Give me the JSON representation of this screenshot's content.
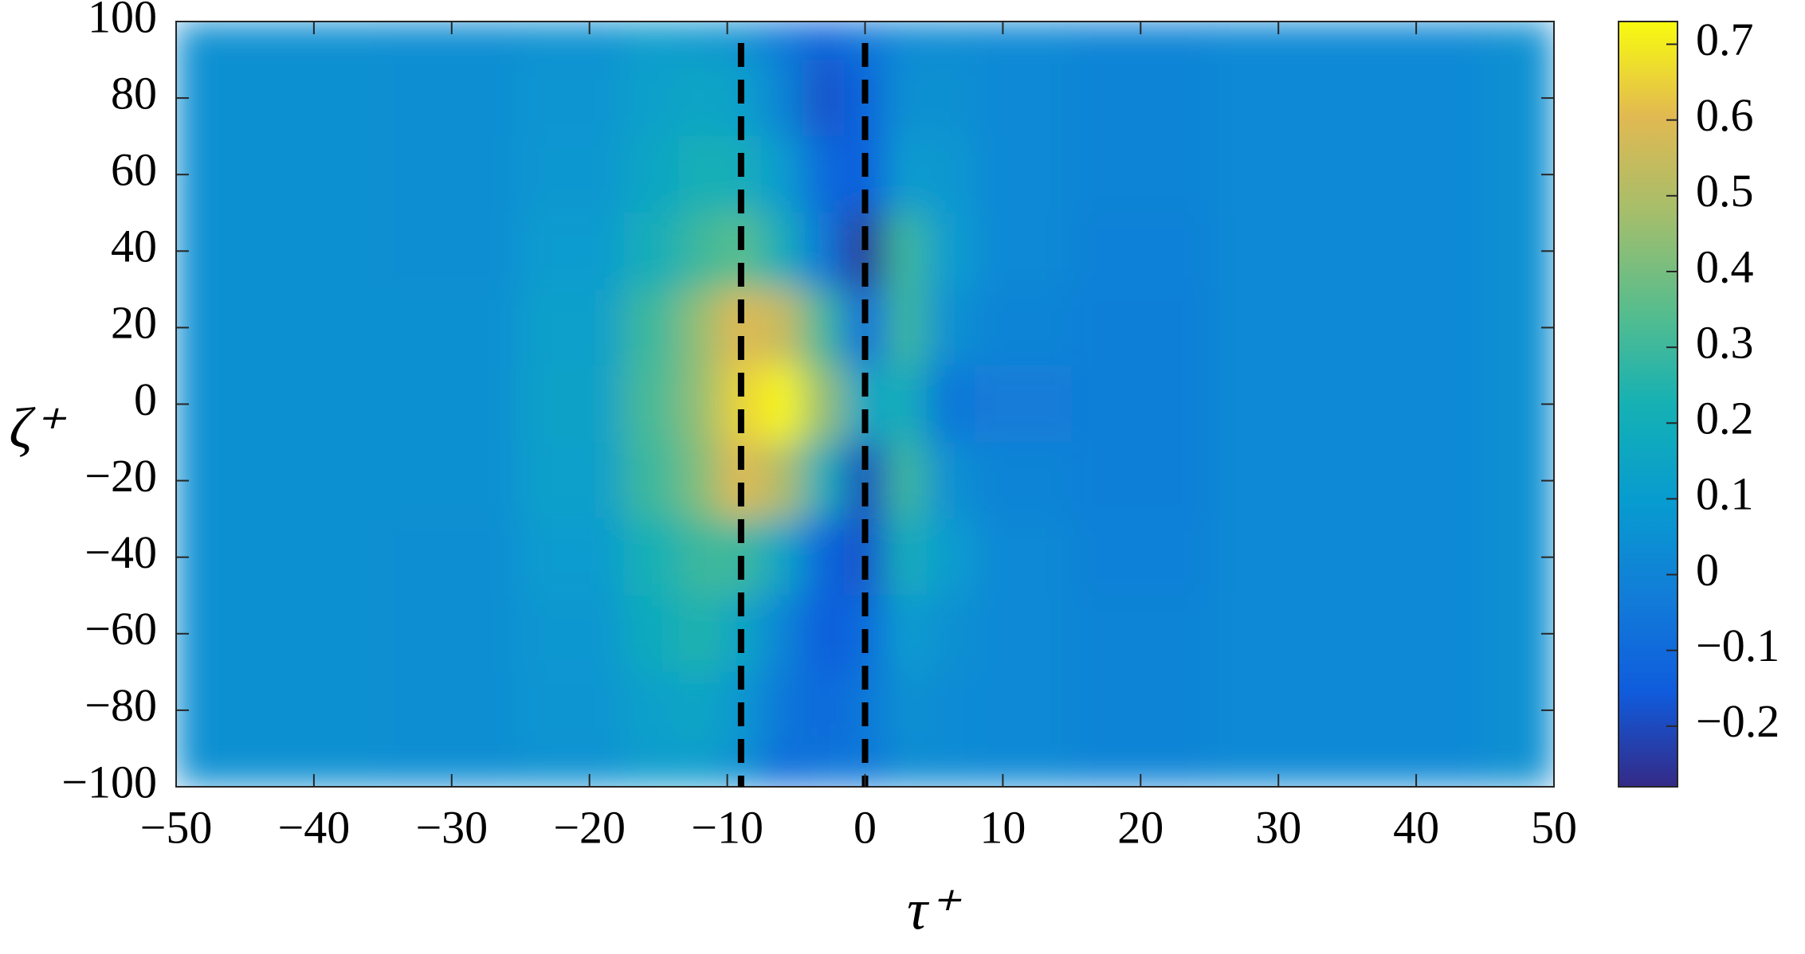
{
  "chart_data": {
    "type": "heatmap",
    "x": [
      -50,
      -40,
      -30,
      -20,
      -15,
      -12,
      -9,
      -6,
      -3,
      0,
      3,
      6,
      10,
      20,
      30,
      40,
      50
    ],
    "y": [
      100,
      80,
      60,
      40,
      20,
      0,
      -20,
      -40,
      -60,
      -80,
      -100
    ],
    "values": [
      [
        0.05,
        0.05,
        0.04,
        0.06,
        0.1,
        0.08,
        0.05,
        -0.05,
        -0.12,
        -0.05,
        0.02,
        0.03,
        0.02,
        0.0,
        0.02,
        0.02,
        0.05
      ],
      [
        0.05,
        0.05,
        0.04,
        0.07,
        0.12,
        0.15,
        0.12,
        0.0,
        -0.18,
        -0.12,
        0.05,
        0.05,
        0.02,
        0.0,
        0.02,
        0.02,
        0.05
      ],
      [
        0.05,
        0.05,
        0.04,
        0.08,
        0.15,
        0.22,
        0.2,
        0.1,
        -0.1,
        -0.15,
        0.1,
        0.08,
        0.02,
        0.0,
        0.02,
        0.02,
        0.05
      ],
      [
        0.05,
        0.05,
        0.04,
        0.1,
        0.2,
        0.3,
        0.35,
        0.2,
        -0.05,
        -0.25,
        0.3,
        0.1,
        0.02,
        -0.01,
        0.02,
        0.02,
        0.05
      ],
      [
        0.05,
        0.05,
        0.05,
        0.12,
        0.3,
        0.45,
        0.6,
        0.55,
        0.3,
        -0.1,
        0.3,
        0.05,
        0.0,
        -0.02,
        0.02,
        0.02,
        0.05
      ],
      [
        0.05,
        0.05,
        0.05,
        0.13,
        0.32,
        0.45,
        0.65,
        0.72,
        0.45,
        0.15,
        0.2,
        -0.05,
        -0.03,
        -0.02,
        0.02,
        0.02,
        0.05
      ],
      [
        0.05,
        0.05,
        0.05,
        0.12,
        0.3,
        0.42,
        0.6,
        0.5,
        0.2,
        -0.2,
        0.3,
        0.05,
        0.0,
        -0.02,
        0.02,
        0.02,
        0.05
      ],
      [
        0.05,
        0.05,
        0.04,
        0.1,
        0.22,
        0.3,
        0.3,
        0.15,
        -0.12,
        -0.18,
        0.2,
        0.1,
        0.02,
        -0.01,
        0.02,
        0.02,
        0.05
      ],
      [
        0.05,
        0.05,
        0.04,
        0.08,
        0.18,
        0.25,
        0.15,
        0.0,
        -0.15,
        -0.1,
        0.1,
        0.05,
        0.02,
        0.0,
        0.02,
        0.02,
        0.05
      ],
      [
        0.05,
        0.05,
        0.04,
        0.07,
        0.12,
        0.15,
        0.08,
        -0.05,
        -0.1,
        -0.05,
        0.05,
        0.03,
        0.02,
        0.0,
        0.02,
        0.02,
        0.05
      ],
      [
        0.05,
        0.05,
        0.04,
        0.06,
        0.1,
        0.1,
        0.05,
        -0.1,
        -0.05,
        -0.05,
        0.03,
        0.03,
        0.02,
        0.0,
        0.02,
        0.02,
        0.05
      ]
    ],
    "xlim": [
      -50,
      50
    ],
    "ylim": [
      -100,
      100
    ],
    "xticks": [
      {
        "value": -50,
        "label": "−50"
      },
      {
        "value": -40,
        "label": "−40"
      },
      {
        "value": -30,
        "label": "−30"
      },
      {
        "value": -20,
        "label": "−20"
      },
      {
        "value": -10,
        "label": "−10"
      },
      0,
      10,
      20,
      30,
      40,
      50
    ],
    "yticks": [
      {
        "value": -100,
        "label": "−100"
      },
      {
        "value": -80,
        "label": "−80"
      },
      {
        "value": -60,
        "label": "−60"
      },
      {
        "value": -40,
        "label": "−40"
      },
      {
        "value": -20,
        "label": "−20"
      },
      0,
      20,
      40,
      60,
      80,
      100
    ],
    "xlabel": "τ⁺",
    "ylabel": "ζ⁺",
    "colormap": "parula",
    "clim": [
      -0.28,
      0.73
    ],
    "cticks": [
      {
        "value": -0.2,
        "label": "−0.2"
      },
      {
        "value": -0.1,
        "label": "−0.1"
      },
      0,
      0.1,
      0.2,
      0.3,
      0.4,
      0.5,
      0.6,
      0.7
    ],
    "vlines": [
      -9,
      0
    ],
    "vline_color": "#000000"
  }
}
